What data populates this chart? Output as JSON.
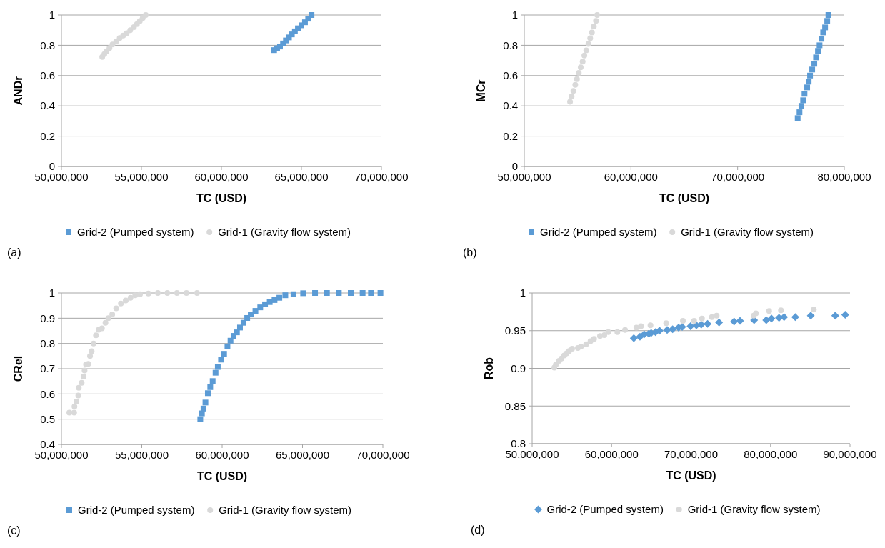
{
  "chart_data": [
    {
      "type": "scatter",
      "xlabel": "TC (USD)",
      "ylabel": "ANDr",
      "annotations": [
        "(a)"
      ],
      "legend": "bottom",
      "grid": "y",
      "xlim": [
        50000000,
        70000000
      ],
      "xticks": [
        {
          "value": 50000000,
          "label": "50,000,000"
        },
        {
          "value": 55000000,
          "label": "55,000,000"
        },
        {
          "value": 60000000,
          "label": "60,000,000"
        },
        {
          "value": 65000000,
          "label": "65,000,000"
        },
        {
          "value": 70000000,
          "label": "70,000,000"
        }
      ],
      "ylim": [
        0,
        1
      ],
      "yticks": [
        0,
        0.2,
        0.4,
        0.6,
        0.8,
        1
      ],
      "series": [
        {
          "name": "Grid-2 (Pumped system)",
          "color": "#5b9bd5",
          "marker": "square",
          "x": [
            63290000,
            63480000,
            63660000,
            63850000,
            64030000,
            64220000,
            64400000,
            64590000,
            64780000,
            65000000,
            65220000,
            65420000,
            65630000
          ],
          "values": [
            0.768,
            0.78,
            0.792,
            0.812,
            0.832,
            0.852,
            0.872,
            0.892,
            0.912,
            0.932,
            0.952,
            0.976,
            1.0
          ]
        },
        {
          "name": "Grid-1 (Gravity flow system)",
          "color": "#d9d9d9",
          "marker": "circle",
          "x": [
            52550000,
            52680000,
            52820000,
            53000000,
            53190000,
            53420000,
            53640000,
            53860000,
            54080000,
            54300000,
            54530000,
            54720000,
            54900000,
            55080000,
            55270000
          ],
          "values": [
            0.723,
            0.742,
            0.76,
            0.782,
            0.805,
            0.826,
            0.848,
            0.864,
            0.88,
            0.9,
            0.92,
            0.94,
            0.96,
            0.98,
            1.0
          ]
        }
      ]
    },
    {
      "type": "scatter",
      "xlabel": "TC (USD)",
      "ylabel": "MCr",
      "annotations": [
        "(b)"
      ],
      "legend": "bottom",
      "grid": "y",
      "xlim": [
        50000000,
        80000000
      ],
      "xticks": [
        {
          "value": 50000000,
          "label": "50,000,000"
        },
        {
          "value": 60000000,
          "label": "60,000,000"
        },
        {
          "value": 70000000,
          "label": "70,000,000"
        },
        {
          "value": 80000000,
          "label": "80,000,000"
        }
      ],
      "ylim": [
        0,
        1
      ],
      "yticks": [
        0,
        0.2,
        0.4,
        0.6,
        0.8,
        1
      ],
      "series": [
        {
          "name": "Grid-2 (Pumped system)",
          "color": "#5b9bd5",
          "marker": "square",
          "x": [
            75630000,
            75800000,
            75980000,
            76140000,
            76270000,
            76520000,
            76660000,
            76790000,
            76990000,
            77190000,
            77350000,
            77530000,
            77680000,
            77860000,
            78020000,
            78200000,
            78400000,
            78510000
          ],
          "values": [
            0.319,
            0.358,
            0.4,
            0.437,
            0.48,
            0.522,
            0.56,
            0.6,
            0.64,
            0.678,
            0.72,
            0.763,
            0.8,
            0.843,
            0.885,
            0.918,
            0.961,
            1.0
          ]
        },
        {
          "name": "Grid-1 (Gravity flow system)",
          "color": "#d9d9d9",
          "marker": "circle",
          "x": [
            54290000,
            54440000,
            54600000,
            54780000,
            54940000,
            55110000,
            55290000,
            55470000,
            55630000,
            55810000,
            56010000,
            56180000,
            56340000,
            56520000,
            56720000,
            56830000
          ],
          "values": [
            0.427,
            0.462,
            0.499,
            0.539,
            0.577,
            0.618,
            0.654,
            0.692,
            0.732,
            0.767,
            0.809,
            0.847,
            0.885,
            0.924,
            0.961,
            1.0
          ]
        }
      ]
    },
    {
      "type": "scatter",
      "xlabel": "TC (USD)",
      "ylabel": "CRel",
      "annotations": [
        "(c)"
      ],
      "legend": "bottom",
      "grid": "y",
      "xlim": [
        50000000,
        70000000
      ],
      "xticks": [
        {
          "value": 50000000,
          "label": "50,000,000"
        },
        {
          "value": 55000000,
          "label": "55,000,000"
        },
        {
          "value": 60000000,
          "label": "60,000,000"
        },
        {
          "value": 65000000,
          "label": "65,000,000"
        },
        {
          "value": 70000000,
          "label": "70,000,000"
        }
      ],
      "ylim": [
        0.4,
        1
      ],
      "yticks": [
        0.4,
        0.5,
        0.6,
        0.7,
        0.8,
        0.9,
        1
      ],
      "series": [
        {
          "name": "Grid-2 (Pumped system)",
          "color": "#5b9bd5",
          "marker": "square",
          "x": [
            58640000,
            58740000,
            58840000,
            58960000,
            59110000,
            59260000,
            59410000,
            59590000,
            59730000,
            59930000,
            60120000,
            60330000,
            60520000,
            60710000,
            60920000,
            61110000,
            61330000,
            61560000,
            61780000,
            62070000,
            62370000,
            62670000,
            62960000,
            63260000,
            63560000,
            63930000,
            64440000,
            65040000,
            65780000,
            66520000,
            67260000,
            68000000,
            68740000,
            69260000,
            69850000
          ],
          "values": [
            0.5,
            0.523,
            0.542,
            0.566,
            0.603,
            0.627,
            0.651,
            0.684,
            0.707,
            0.736,
            0.759,
            0.788,
            0.811,
            0.83,
            0.844,
            0.863,
            0.882,
            0.901,
            0.915,
            0.929,
            0.943,
            0.955,
            0.964,
            0.972,
            0.981,
            0.991,
            0.995,
            0.999,
            1.0,
            1.0,
            1.0,
            1.0,
            1.0,
            1.0,
            1.0
          ]
        },
        {
          "name": "Grid-1 (Gravity flow system)",
          "color": "#d9d9d9",
          "marker": "circle",
          "x": [
            50490000,
            50790000,
            50810000,
            50930000,
            51050000,
            51080000,
            51260000,
            51380000,
            51440000,
            51530000,
            51670000,
            51780000,
            51880000,
            52000000,
            52150000,
            52320000,
            52520000,
            52740000,
            52920000,
            53160000,
            53410000,
            53700000,
            54000000,
            54300000,
            54590000,
            54890000,
            55410000,
            56000000,
            56590000,
            57190000,
            57780000,
            58440000
          ],
          "values": [
            0.526,
            0.526,
            0.55,
            0.57,
            0.594,
            0.624,
            0.644,
            0.669,
            0.693,
            0.717,
            0.719,
            0.75,
            0.769,
            0.8,
            0.832,
            0.854,
            0.86,
            0.882,
            0.9,
            0.915,
            0.939,
            0.958,
            0.97,
            0.981,
            0.991,
            0.995,
            0.998,
            1.0,
            1.0,
            1.0,
            1.0,
            1.0
          ]
        }
      ]
    },
    {
      "type": "scatter",
      "xlabel": "TC (USD)",
      "ylabel": "Rob",
      "annotations": [
        "(d)"
      ],
      "legend": "bottom",
      "grid": "y",
      "xlim": [
        50000000,
        90000000
      ],
      "xticks": [
        {
          "value": 50000000,
          "label": "50,000,000"
        },
        {
          "value": 60000000,
          "label": "60,000,000"
        },
        {
          "value": 70000000,
          "label": "70,000,000"
        },
        {
          "value": 80000000,
          "label": "80,000,000"
        },
        {
          "value": 90000000,
          "label": "90,000,000"
        }
      ],
      "ylim": [
        0.8,
        1
      ],
      "yticks": [
        0.8,
        0.85,
        0.9,
        0.95,
        1
      ],
      "series": [
        {
          "name": "Grid-2 (Pumped system)",
          "color": "#5b9bd5",
          "marker": "diamond",
          "x": [
            62790000,
            63570000,
            64090000,
            64680000,
            64980000,
            65520000,
            66030000,
            66990000,
            67680000,
            68430000,
            68880000,
            69930000,
            70670000,
            71280000,
            72080000,
            73520000,
            75410000,
            76160000,
            77930000,
            79460000,
            80110000,
            81070000,
            81700000,
            83110000,
            85060000,
            88140000,
            89400000
          ],
          "values": [
            0.94,
            0.942,
            0.945,
            0.946,
            0.947,
            0.948,
            0.95,
            0.951,
            0.952,
            0.954,
            0.955,
            0.956,
            0.957,
            0.958,
            0.959,
            0.961,
            0.962,
            0.963,
            0.964,
            0.964,
            0.966,
            0.967,
            0.968,
            0.968,
            0.97,
            0.97,
            0.971
          ]
        },
        {
          "name": "Grid-1 (Gravity flow system)",
          "color": "#d9d9d9",
          "marker": "circle",
          "x": [
            52790000,
            52990000,
            53390000,
            53690000,
            54040000,
            54340000,
            54650000,
            55030000,
            55750000,
            56140000,
            56800000,
            57340000,
            57790000,
            58540000,
            59080000,
            59590000,
            60720000,
            61690000,
            63120000,
            63690000,
            64890000,
            66870000,
            68970000,
            70380000,
            71370000,
            72620000,
            73220000,
            77870000,
            78160000,
            79820000,
            81310000,
            85440000
          ],
          "values": [
            0.901,
            0.905,
            0.91,
            0.913,
            0.917,
            0.92,
            0.923,
            0.926,
            0.927,
            0.929,
            0.932,
            0.936,
            0.939,
            0.943,
            0.944,
            0.948,
            0.948,
            0.951,
            0.954,
            0.956,
            0.957,
            0.96,
            0.963,
            0.963,
            0.966,
            0.968,
            0.97,
            0.97,
            0.973,
            0.976,
            0.977,
            0.978
          ]
        }
      ]
    }
  ]
}
